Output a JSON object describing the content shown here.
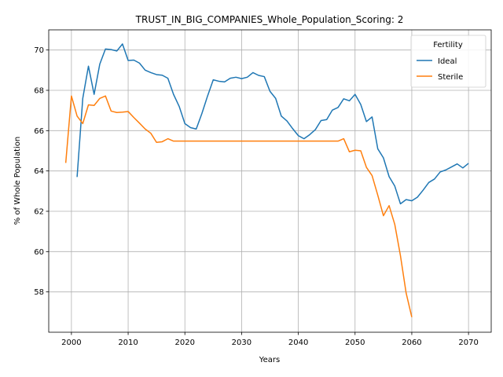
{
  "chart_data": {
    "type": "line",
    "title": "TRUST_IN_BIG_COMPANIES_Whole_Population_Scoring: 2",
    "xlabel": "Years",
    "ylabel": "% of Whole Population",
    "xlim": [
      1996,
      2074
    ],
    "ylim": [
      56.0,
      71.0
    ],
    "xticks": [
      2000,
      2010,
      2020,
      2030,
      2040,
      2050,
      2060,
      2070
    ],
    "yticks": [
      58,
      60,
      62,
      64,
      66,
      68,
      70
    ],
    "grid": true,
    "legend": {
      "title": "Fertility",
      "placement": "top-right"
    },
    "series": [
      {
        "name": "Ideal",
        "color": "#1f77b4",
        "x": [
          2001,
          2002,
          2003,
          2004,
          2005,
          2006,
          2007,
          2008,
          2009,
          2010,
          2011,
          2012,
          2013,
          2014,
          2015,
          2016,
          2017,
          2018,
          2019,
          2020,
          2021,
          2022,
          2023,
          2024,
          2025,
          2026,
          2027,
          2028,
          2029,
          2030,
          2031,
          2032,
          2033,
          2034,
          2035,
          2036,
          2037,
          2038,
          2039,
          2040,
          2041,
          2042,
          2043,
          2044,
          2045,
          2046,
          2047,
          2048,
          2049,
          2050,
          2051,
          2052,
          2053,
          2054,
          2055,
          2056,
          2057,
          2058,
          2059,
          2060,
          2061,
          2062,
          2063,
          2064,
          2065,
          2066,
          2067,
          2068,
          2069,
          2070
        ],
        "y": [
          63.7,
          67.6,
          69.2,
          67.8,
          69.3,
          70.05,
          70.02,
          69.95,
          70.3,
          69.48,
          69.5,
          69.35,
          69.0,
          68.88,
          68.78,
          68.75,
          68.6,
          67.8,
          67.2,
          66.35,
          66.15,
          66.08,
          66.85,
          67.72,
          68.52,
          68.45,
          68.42,
          68.6,
          68.65,
          68.58,
          68.65,
          68.88,
          68.74,
          68.68,
          67.95,
          67.6,
          66.72,
          66.48,
          66.1,
          65.75,
          65.6,
          65.8,
          66.05,
          66.5,
          66.55,
          67.02,
          67.15,
          67.58,
          67.48,
          67.8,
          67.3,
          66.45,
          66.68,
          65.1,
          64.65,
          63.72,
          63.25,
          62.37,
          62.58,
          62.52,
          62.7,
          63.05,
          63.43,
          63.6,
          63.95,
          64.05,
          64.2,
          64.35,
          64.15,
          64.38
        ]
      },
      {
        "name": "Sterile",
        "color": "#ff7f0e",
        "x": [
          1999,
          2000,
          2001,
          2002,
          2003,
          2004,
          2005,
          2006,
          2007,
          2008,
          2009,
          2010,
          2011,
          2012,
          2013,
          2014,
          2015,
          2016,
          2017,
          2018,
          2019,
          2020,
          2021,
          2022,
          2023,
          2024,
          2025,
          2026,
          2027,
          2028,
          2029,
          2030,
          2031,
          2032,
          2033,
          2034,
          2035,
          2036,
          2037,
          2038,
          2039,
          2040,
          2041,
          2042,
          2043,
          2044,
          2045,
          2046,
          2047,
          2048,
          2049,
          2050,
          2051,
          2052,
          2053,
          2054,
          2055,
          2056,
          2057,
          2058,
          2059,
          2060
        ],
        "y": [
          64.4,
          67.72,
          66.72,
          66.35,
          67.28,
          67.25,
          67.6,
          67.72,
          66.97,
          66.9,
          66.92,
          66.95,
          66.65,
          66.37,
          66.08,
          65.87,
          65.42,
          65.45,
          65.6,
          65.48,
          65.48,
          65.48,
          65.48,
          65.48,
          65.48,
          65.48,
          65.48,
          65.48,
          65.48,
          65.48,
          65.48,
          65.48,
          65.48,
          65.48,
          65.48,
          65.48,
          65.48,
          65.48,
          65.48,
          65.48,
          65.48,
          65.48,
          65.48,
          65.48,
          65.48,
          65.48,
          65.48,
          65.48,
          65.48,
          65.6,
          64.95,
          65.03,
          65.0,
          64.18,
          63.77,
          62.8,
          61.78,
          62.28,
          61.35,
          59.8,
          57.95,
          56.75
        ]
      }
    ]
  }
}
